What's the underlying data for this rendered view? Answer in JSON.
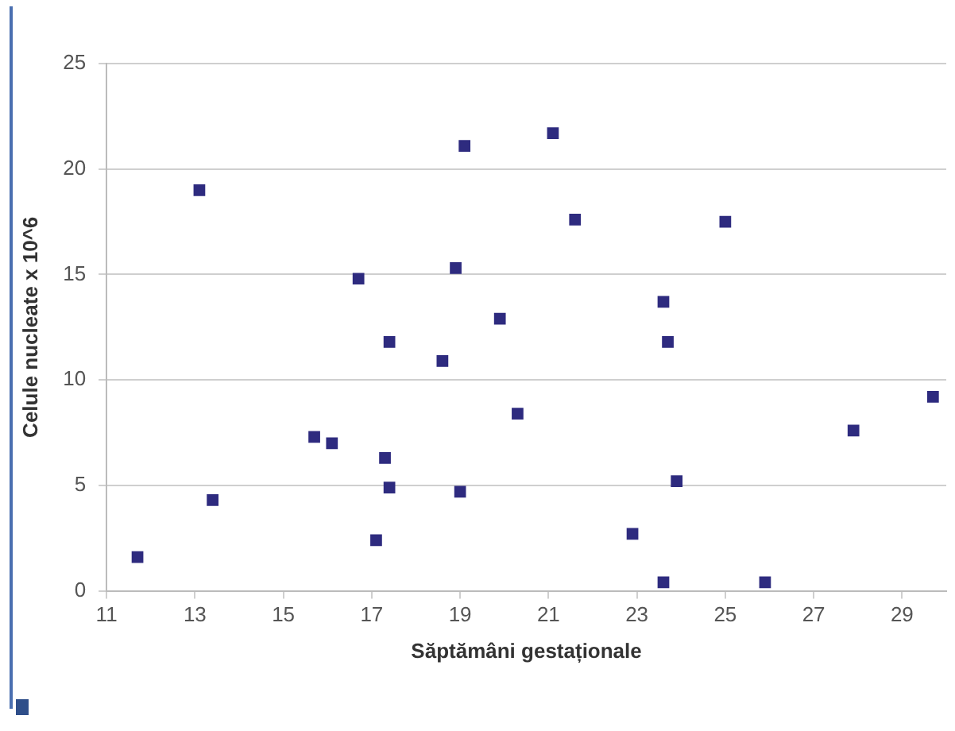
{
  "chart_data": {
    "type": "scatter",
    "xlabel": "Săptămâni gestaționale",
    "ylabel": "Celule nucleate x 10^6",
    "x": [
      11.7,
      13.1,
      13.4,
      15.7,
      16.1,
      17.1,
      17.3,
      17.4,
      19.0,
      16.7,
      17.4,
      18.6,
      18.9,
      19.1,
      21.1,
      21.6,
      25.0,
      19.9,
      23.6,
      23.7,
      29.7,
      20.3,
      27.9,
      23.9,
      22.9,
      23.6,
      25.9
    ],
    "series": [
      {
        "color": "#2e2b7f",
        "values": [
          1.6,
          19.0,
          4.3,
          7.3,
          7.0,
          2.4,
          6.3,
          4.9,
          4.7,
          14.8,
          11.8,
          10.9,
          15.3,
          21.1,
          21.7,
          17.6,
          17.5,
          12.9,
          13.7,
          11.8,
          9.2,
          8.4,
          7.6,
          5.2,
          2.7,
          0.4,
          0.4
        ]
      }
    ],
    "xlim": [
      11,
      30
    ],
    "xticks": [
      11,
      13,
      15,
      17,
      19,
      21,
      23,
      25,
      27,
      29
    ],
    "ylim": [
      0,
      25
    ],
    "yticks": [
      0,
      5,
      10,
      15,
      20,
      25
    ],
    "grid": "y",
    "marker": "square",
    "legend": false
  }
}
